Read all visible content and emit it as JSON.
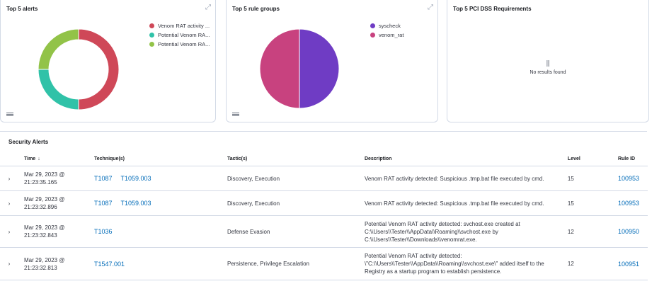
{
  "panels": {
    "alerts": {
      "title": "Top 5 alerts",
      "legend": [
        {
          "label": "Venom RAT activity ...",
          "color": "#cf4858"
        },
        {
          "label": "Potential Venom RA...",
          "color": "#30c2a8"
        },
        {
          "label": "Potential Venom RA...",
          "color": "#92c348"
        }
      ]
    },
    "rule_groups": {
      "title": "Top 5 rule groups",
      "legend": [
        {
          "label": "syscheck",
          "color": "#6f3cc4"
        },
        {
          "label": "venom_rat",
          "color": "#c8427f"
        }
      ]
    },
    "pci": {
      "title": "Top 5 PCI DSS Requirements",
      "empty_message": "No results found"
    }
  },
  "chart_data": [
    {
      "type": "pie",
      "style": "donut",
      "labels": [
        "Venom RAT activity ...",
        "Potential Venom RA...",
        "Potential Venom RA..."
      ],
      "values": [
        2,
        1,
        1
      ],
      "colors": [
        "#cf4858",
        "#30c2a8",
        "#92c348"
      ]
    },
    {
      "type": "pie",
      "labels": [
        "syscheck",
        "venom_rat"
      ],
      "values": [
        1,
        1
      ],
      "colors": [
        "#6f3cc4",
        "#c8427f"
      ]
    }
  ],
  "alerts_table": {
    "title": "Security Alerts",
    "headers": {
      "time": "Time",
      "technique": "Technique(s)",
      "tactic": "Tactic(s)",
      "description": "Description",
      "level": "Level",
      "rule_id": "Rule ID"
    },
    "rows": [
      {
        "time_date": "Mar 29, 2023 @",
        "time_clock": "21:23:35.165",
        "techniques": [
          "T1087",
          "T1059.003"
        ],
        "tactics": "Discovery, Execution",
        "description": "Venom RAT activity detected: Suspicious .tmp.bat file executed by cmd.",
        "level": "15",
        "rule_id": "100953"
      },
      {
        "time_date": "Mar 29, 2023 @",
        "time_clock": "21:23:32.896",
        "techniques": [
          "T1087",
          "T1059.003"
        ],
        "tactics": "Discovery, Execution",
        "description": "Venom RAT activity detected: Suspicious .tmp.bat file executed by cmd.",
        "level": "15",
        "rule_id": "100953"
      },
      {
        "time_date": "Mar 29, 2023 @",
        "time_clock": "21:23:32.843",
        "techniques": [
          "T1036"
        ],
        "tactics": "Defense Evasion",
        "description": "Potential Venom RAT activity detected: svchost.exe created at C:\\\\Users\\\\Tester\\\\AppData\\\\Roaming\\\\svchost.exe by C:\\\\Users\\\\Tester\\\\Downloads\\\\venomrat.exe.",
        "level": "12",
        "rule_id": "100950"
      },
      {
        "time_date": "Mar 29, 2023 @",
        "time_clock": "21:23:32.813",
        "techniques": [
          "T1547.001"
        ],
        "tactics": "Persistence, Privilege Escalation",
        "description": "Potential Venom RAT activity detected: \\\"C:\\\\Users\\\\Tester\\\\AppData\\\\Roaming\\\\svchost.exe\\\" added itself to the Registry as a startup program to establish persistence.",
        "level": "12",
        "rule_id": "100951"
      }
    ]
  },
  "icons": {
    "expand": "expand-icon",
    "legend_toggle": "legend-toggle-icon",
    "row_expand": "chevron-right-icon",
    "sort": "arrow-down-icon",
    "empty_chart": "chart-icon"
  }
}
